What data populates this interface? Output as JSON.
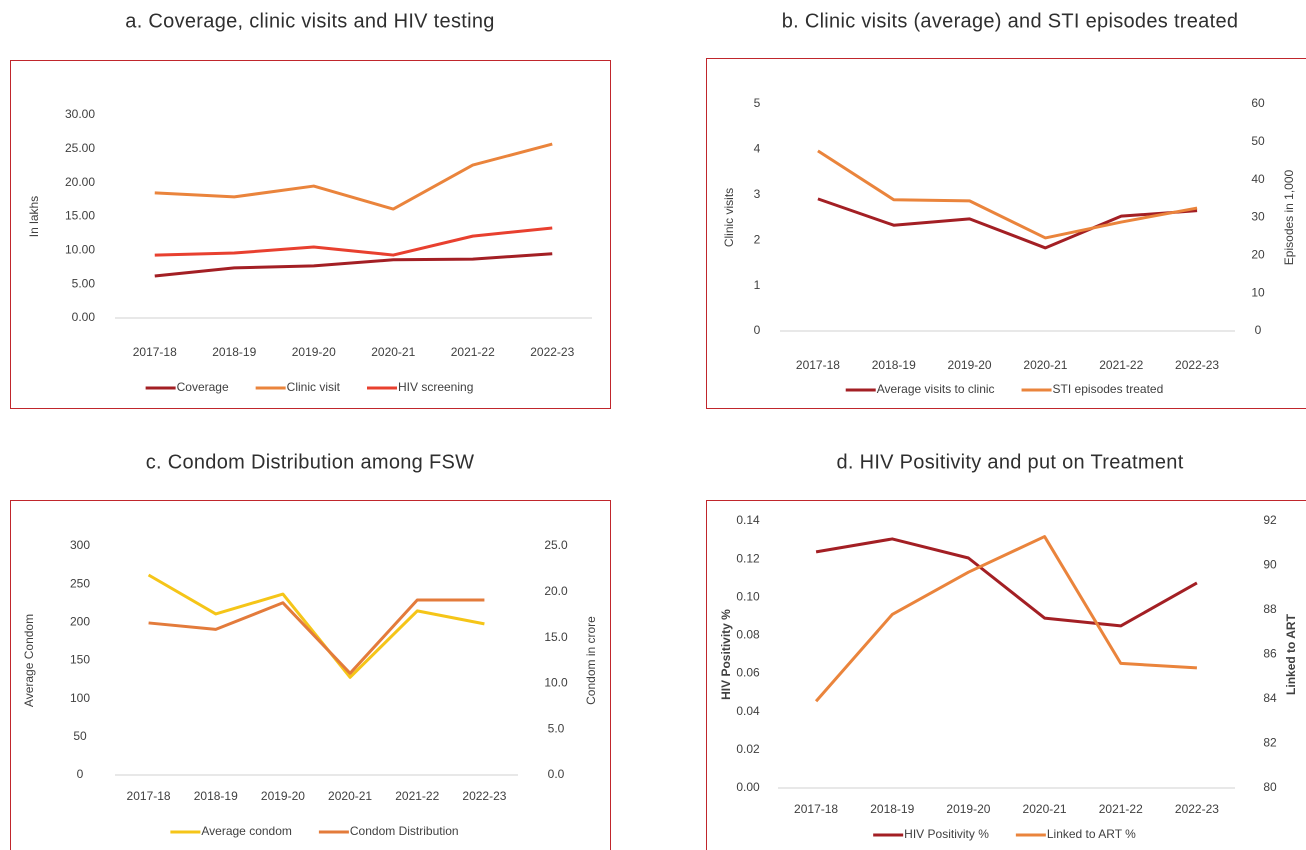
{
  "chart_data": [
    {
      "type": "line",
      "title": "a. Coverage, clinic visits and HIV testing",
      "ylabel": "In lakhs",
      "categories": [
        "2017-18",
        "2018-19",
        "2019-20",
        "2020-21",
        "2021-22",
        "2022-23"
      ],
      "series": [
        {
          "name": "Coverage",
          "color": "#a31f24",
          "values": [
            6.2,
            7.4,
            7.7,
            8.6,
            8.7,
            9.5
          ]
        },
        {
          "name": "Clinic visit",
          "color": "#ea843c",
          "values": [
            18.5,
            17.9,
            19.5,
            16.1,
            22.6,
            25.7
          ]
        },
        {
          "name": "HIV screening",
          "color": "#e8402f",
          "values": [
            9.3,
            9.6,
            10.5,
            9.3,
            12.1,
            13.3
          ]
        }
      ],
      "ylim": [
        0,
        30
      ],
      "yticks": [
        {
          "value": 0,
          "label": "0.00"
        },
        {
          "value": 5,
          "label": "5.00"
        },
        {
          "value": 10,
          "label": "10.00"
        },
        {
          "value": 15,
          "label": "15.00"
        },
        {
          "value": 20,
          "label": "20.00"
        },
        {
          "value": 25,
          "label": "25.00"
        },
        {
          "value": 30,
          "label": "30.00"
        }
      ],
      "grid": false,
      "legend": "bottom"
    },
    {
      "type": "line",
      "title": "b. Clinic visits (average) and STI episodes treated",
      "ylabel": "Clinic visits",
      "y2label": "Episodes in 1,000",
      "categories": [
        "2017-18",
        "2018-19",
        "2019-20",
        "2020-21",
        "2021-22",
        "2022-23"
      ],
      "series": [
        {
          "name": "Average visits to clinic",
          "color": "#a31f24",
          "values": [
            2.91,
            2.33,
            2.47,
            1.83,
            2.53,
            2.65
          ]
        },
        {
          "name": "STI episodes treated",
          "color": "#ea843c",
          "axis": "y2",
          "values": [
            47.6,
            34.7,
            34.4,
            24.6,
            28.8,
            32.5
          ]
        }
      ],
      "ylim": [
        0,
        5
      ],
      "yticks": [
        0,
        1,
        2,
        3,
        4,
        5
      ],
      "y2lim": [
        0,
        60
      ],
      "y2ticks": [
        0,
        10,
        20,
        30,
        40,
        50,
        60
      ],
      "grid": false,
      "legend": "bottom"
    },
    {
      "type": "line",
      "title": "c. Condom Distribution among FSW",
      "ylabel": "Average  Condom",
      "y2label": "Condom in crore",
      "categories": [
        "2017-18",
        "2018-19",
        "2019-20",
        "2020-21",
        "2021-22",
        "2022-23"
      ],
      "series": [
        {
          "name": "Average condom",
          "color": "#f5c518",
          "values": [
            262,
            211,
            237,
            128,
            215,
            198
          ]
        },
        {
          "name": "Condom Distribution",
          "color": "#e37b3b",
          "axis": "y2",
          "values": [
            16.6,
            15.9,
            18.8,
            11.1,
            19.1,
            19.1
          ]
        }
      ],
      "ylim": [
        0,
        300
      ],
      "yticks": [
        0,
        50,
        100,
        150,
        200,
        250,
        300
      ],
      "y2lim": [
        0,
        25
      ],
      "y2ticks": [
        {
          "value": 0,
          "label": "0.0"
        },
        {
          "value": 5,
          "label": "5.0"
        },
        {
          "value": 10,
          "label": "10.0"
        },
        {
          "value": 15,
          "label": "15.0"
        },
        {
          "value": 20,
          "label": "20.0"
        },
        {
          "value": 25,
          "label": "25.0"
        }
      ],
      "grid": false,
      "legend": "bottom"
    },
    {
      "type": "line",
      "title": "d. HIV Positivity and put on Treatment",
      "ylabel": "HIV Positivity %",
      "y2label": "Linked to ART",
      "categories": [
        "2017-18",
        "2018-19",
        "2019-20",
        "2020-21",
        "2021-22",
        "2022-23"
      ],
      "series": [
        {
          "name": "HIV Positivity %",
          "color": "#a31f24",
          "values": [
            0.1238,
            0.1306,
            0.1206,
            0.0891,
            0.085,
            0.1075
          ]
        },
        {
          "name": "Linked to ART %",
          "color": "#ea843c",
          "axis": "y2",
          "values": [
            83.9,
            87.8,
            89.7,
            91.3,
            85.6,
            85.4
          ]
        }
      ],
      "ylim": [
        0,
        0.14
      ],
      "yticks": [
        {
          "value": 0,
          "label": "0.00"
        },
        0.02,
        0.04,
        0.06,
        0.08,
        {
          "value": 0.1,
          "label": "0.10"
        },
        0.12,
        0.14
      ],
      "y2lim": [
        80,
        92
      ],
      "y2ticks": [
        80,
        82,
        84,
        86,
        88,
        90,
        92
      ],
      "grid": false,
      "legend": "bottom"
    }
  ]
}
